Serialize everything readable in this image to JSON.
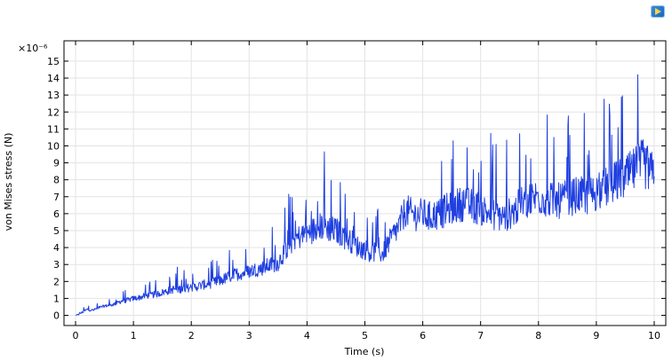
{
  "chart_data": {
    "type": "line",
    "title": "",
    "xlabel": "Time (s)",
    "ylabel": "von Mises stress (N)",
    "y_multiplier_label": "×10⁻⁶",
    "xlim": [
      -0.2,
      10.2
    ],
    "ylim": [
      -0.6,
      16.2
    ],
    "xticks": [
      "0",
      "1",
      "2",
      "3",
      "4",
      "5",
      "6",
      "7",
      "8",
      "9",
      "10"
    ],
    "yticks": [
      "0",
      "1",
      "2",
      "3",
      "4",
      "5",
      "6",
      "7",
      "8",
      "9",
      "10",
      "11",
      "12",
      "13",
      "14",
      "15"
    ],
    "grid": true,
    "series": [
      {
        "color": "#1f3fe0",
        "x": [
          0,
          0.1,
          0.2,
          0.3,
          0.4,
          0.5,
          0.6,
          0.7,
          0.8,
          0.9,
          1.0,
          1.1,
          1.2,
          1.3,
          1.4,
          1.5,
          1.6,
          1.7,
          1.8,
          1.9,
          2.0,
          2.1,
          2.2,
          2.3,
          2.4,
          2.5,
          2.6,
          2.7,
          2.8,
          2.9,
          3.0,
          3.1,
          3.2,
          3.3,
          3.4,
          3.5,
          3.6,
          3.7,
          3.8,
          3.9,
          4.0,
          4.1,
          4.2,
          4.3,
          4.4,
          4.5,
          4.6,
          4.7,
          4.8,
          4.9,
          5.0,
          5.1,
          5.2,
          5.3,
          5.4,
          5.5,
          5.6,
          5.7,
          5.8,
          5.9,
          6.0,
          6.1,
          6.2,
          6.3,
          6.4,
          6.5,
          6.6,
          6.7,
          6.8,
          6.9,
          7.0,
          7.1,
          7.2,
          7.3,
          7.4,
          7.5,
          7.6,
          7.7,
          7.8,
          7.9,
          8.0,
          8.1,
          8.2,
          8.3,
          8.4,
          8.5,
          8.6,
          8.7,
          8.8,
          8.9,
          9.0,
          9.1,
          9.2,
          9.3,
          9.4,
          9.5,
          9.6,
          9.7,
          9.8,
          9.9,
          10.0
        ],
        "y": [
          0.0,
          0.15,
          0.35,
          0.3,
          0.45,
          0.55,
          0.6,
          0.7,
          0.85,
          0.9,
          1.0,
          1.05,
          1.15,
          1.2,
          1.25,
          1.35,
          1.45,
          1.55,
          1.55,
          1.6,
          1.65,
          1.7,
          1.8,
          1.85,
          1.95,
          2.05,
          2.2,
          2.35,
          2.45,
          2.5,
          2.6,
          2.7,
          2.75,
          2.9,
          3.0,
          3.1,
          3.7,
          4.2,
          4.5,
          4.7,
          4.8,
          5.0,
          5.2,
          5.3,
          5.1,
          5.0,
          4.8,
          4.5,
          4.3,
          4.0,
          3.9,
          3.7,
          3.8,
          3.6,
          4.2,
          4.8,
          5.3,
          6.2,
          6.0,
          5.9,
          6.0,
          5.8,
          5.9,
          6.0,
          6.2,
          6.3,
          6.5,
          6.6,
          6.5,
          6.4,
          6.3,
          6.1,
          6.0,
          5.9,
          5.8,
          6.0,
          6.2,
          6.6,
          6.8,
          6.9,
          7.0,
          6.9,
          6.8,
          6.7,
          6.8,
          6.9,
          7.0,
          7.1,
          7.0,
          7.1,
          7.3,
          7.4,
          7.6,
          7.8,
          8.0,
          8.1,
          8.4,
          8.7,
          9.0,
          8.6,
          8.2
        ]
      }
    ]
  }
}
